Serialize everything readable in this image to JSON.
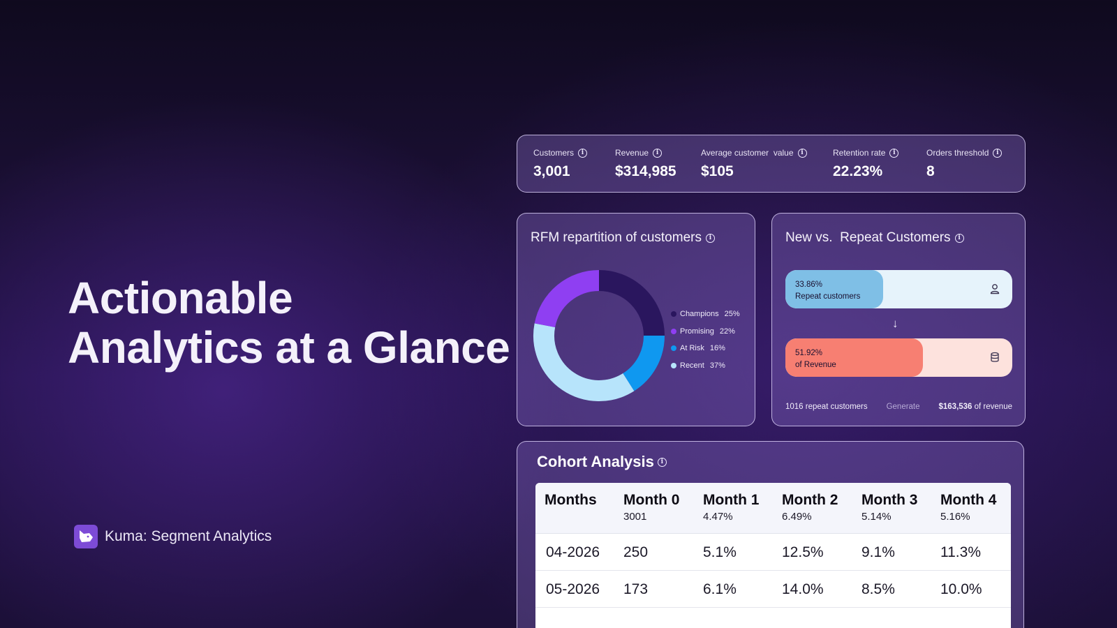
{
  "hero": {
    "line1": "Actionable",
    "line2": "Analytics at a Glance"
  },
  "brand": {
    "name": "Kuma: Segment Analytics",
    "logo_icon": "dog-head-icon",
    "logo_color": "#7d4bd6"
  },
  "kpis": [
    {
      "label": "Customers",
      "value": "3,001"
    },
    {
      "label": "Revenue",
      "value": "$314,985"
    },
    {
      "label": "Average customer  value",
      "value": "$105"
    },
    {
      "label": "Retention rate",
      "value": "22.23%"
    },
    {
      "label": "Orders threshold",
      "value": "8"
    }
  ],
  "rfm": {
    "title": "RFM repartition of customers",
    "legend": [
      {
        "label": "Champions",
        "pct": "25%",
        "color": "#2a165e"
      },
      {
        "label": "Promising",
        "pct": "22%",
        "color": "#8f3ff2"
      },
      {
        "label": "At Risk",
        "pct": "16%",
        "color": "#0f98f0"
      },
      {
        "label": "Recent",
        "pct": "37%",
        "color": "#b7e4fb"
      }
    ]
  },
  "chart_data": {
    "type": "pie",
    "variant": "donut",
    "title": "RFM repartition of customers",
    "slices": [
      {
        "label": "Champions",
        "value": 25,
        "color": "#2a165e"
      },
      {
        "label": "At Risk",
        "value": 16,
        "color": "#0f98f0"
      },
      {
        "label": "Recent",
        "value": 37,
        "color": "#b7e4fb"
      },
      {
        "label": "Promising",
        "value": 22,
        "color": "#8f3ff2"
      }
    ],
    "legend_position": "right"
  },
  "new_vs_repeat": {
    "title": "New vs.  Repeat Customers",
    "repeat_bar": {
      "pct": "33.86%",
      "label": "Repeat customers",
      "fraction": 0.43,
      "fill": "#7fbfe6",
      "track": "#e6f3fb",
      "icon": "user-icon"
    },
    "revenue_bar": {
      "pct": "51.92%",
      "label": "of Revenue",
      "fraction": 0.605,
      "fill": "#f77f72",
      "track": "#fde2dd",
      "icon": "database-icon"
    },
    "footer": {
      "left": "1016 repeat customers",
      "middle": "Generate",
      "amount": "$163,536",
      "right": " of revenue"
    }
  },
  "cohort": {
    "title": "Cohort Analysis",
    "headers": [
      {
        "main": "Months",
        "sub": ""
      },
      {
        "main": "Month 0",
        "sub": "3001"
      },
      {
        "main": "Month 1",
        "sub": "4.47%"
      },
      {
        "main": "Month 2",
        "sub": "6.49%"
      },
      {
        "main": "Month 3",
        "sub": "5.14%"
      },
      {
        "main": "Month 4",
        "sub": "5.16%"
      }
    ],
    "rows": [
      [
        "04-2026",
        "250",
        "5.1%",
        "12.5%",
        "9.1%",
        "11.3%"
      ],
      [
        "05-2026",
        "173",
        "6.1%",
        "14.0%",
        "8.5%",
        "10.0%"
      ]
    ]
  }
}
